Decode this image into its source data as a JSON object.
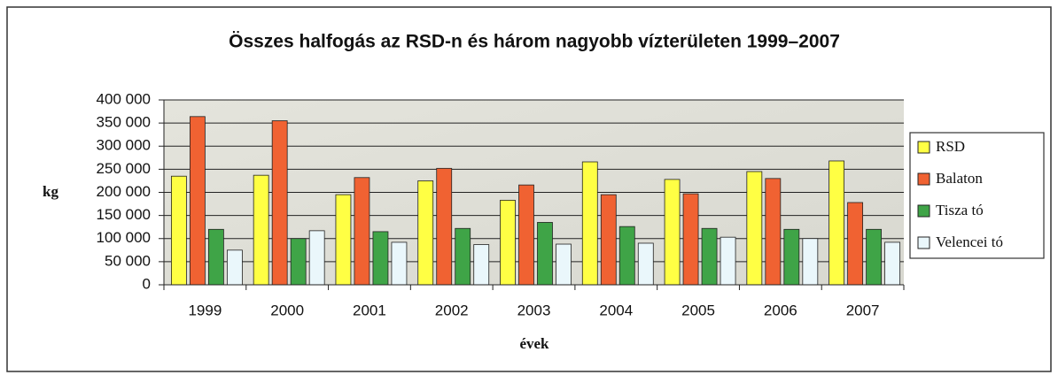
{
  "chart_data": {
    "type": "bar",
    "title": "Összes halfogás az RSD-n és három nagyobb vízterületen 1999–2007",
    "y_label": "kg",
    "x_label": "évek",
    "categories": [
      "1999",
      "2000",
      "2001",
      "2002",
      "2003",
      "2004",
      "2005",
      "2006",
      "2007"
    ],
    "series": [
      {
        "name": "RSD",
        "color": "#ffff44",
        "values": [
          235000,
          237000,
          195000,
          225000,
          183000,
          266000,
          228000,
          245000,
          268000
        ]
      },
      {
        "name": "Balaton",
        "color": "#f06232",
        "values": [
          364000,
          355000,
          232000,
          252000,
          216000,
          195000,
          197000,
          230000,
          178000
        ]
      },
      {
        "name": "Tisza tó",
        "color": "#3fa447",
        "values": [
          120000,
          100000,
          115000,
          122000,
          135000,
          126000,
          122000,
          120000,
          120000
        ]
      },
      {
        "name": "Velencei tó",
        "color": "#eaf7fb",
        "values": [
          75000,
          117000,
          92000,
          87000,
          88000,
          90000,
          103000,
          100000,
          92000
        ]
      }
    ],
    "ylim": [
      0,
      400000
    ],
    "yticks": [
      0,
      {
        "value": 50000,
        "label": "50 000"
      },
      {
        "value": 100000,
        "label": "100 000"
      },
      {
        "value": 150000,
        "label": "150 000"
      },
      {
        "value": 200000,
        "label": "200 000"
      },
      {
        "value": 250000,
        "label": "250 000"
      },
      {
        "value": 300000,
        "label": "300 000"
      },
      {
        "value": 350000,
        "label": "350 000"
      },
      {
        "value": 400000,
        "label": "400 000"
      }
    ],
    "grid": true,
    "legend": "right"
  }
}
